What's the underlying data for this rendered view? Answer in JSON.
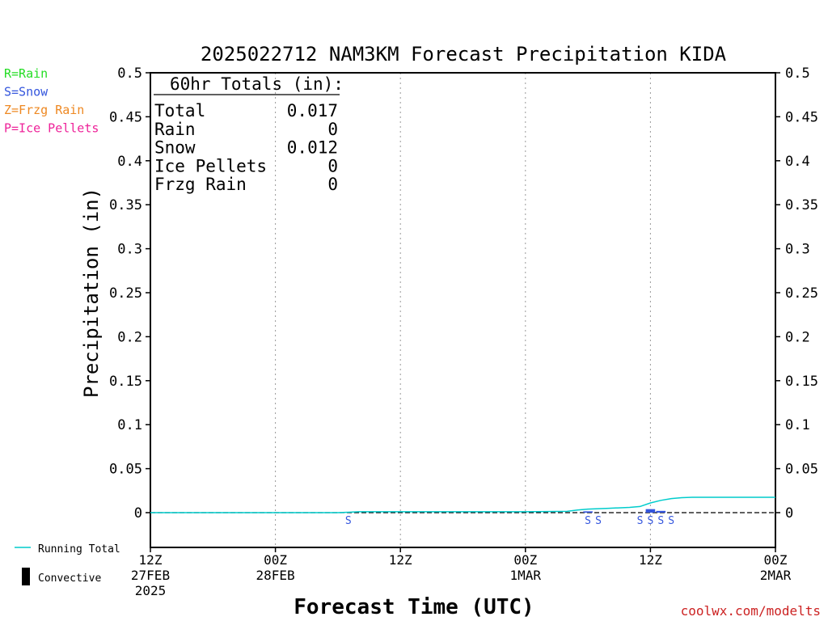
{
  "chart_data": {
    "type": "line",
    "title": "2025022712 NAM3KM Forecast Precipitation KIDA",
    "xlabel": "Forecast Time (UTC)",
    "ylabel": "Precipitation (in)",
    "ylim": [
      0,
      0.5
    ],
    "y_ticks": [
      "0",
      "0.05",
      "0.1",
      "0.15",
      "0.2",
      "0.25",
      "0.3",
      "0.35",
      "0.4",
      "0.45",
      "0.5"
    ],
    "x_range_hours": [
      0,
      60
    ],
    "x_ticks": [
      {
        "hour": 0,
        "lines": [
          "12Z",
          "27FEB",
          "2025"
        ]
      },
      {
        "hour": 12,
        "lines": [
          "00Z",
          "28FEB"
        ]
      },
      {
        "hour": 24,
        "lines": [
          "12Z"
        ]
      },
      {
        "hour": 36,
        "lines": [
          "00Z",
          "1MAR"
        ]
      },
      {
        "hour": 48,
        "lines": [
          "12Z"
        ]
      },
      {
        "hour": 60,
        "lines": [
          "00Z",
          "2MAR"
        ]
      }
    ],
    "grid_hours": [
      12,
      24,
      36,
      48
    ],
    "legend_left": [
      {
        "text": "R=Rain",
        "color": "#22dd22"
      },
      {
        "text": "S=Snow",
        "color": "#3355dd"
      },
      {
        "text": "Z=Frzg Rain",
        "color": "#ee8822"
      },
      {
        "text": "P=Ice Pellets",
        "color": "#ee2299"
      }
    ],
    "legend_bottom": [
      {
        "text": "Running Total",
        "color": "#00cccc",
        "kind": "line"
      },
      {
        "text": "Convective",
        "color": "#000000",
        "kind": "bar"
      }
    ],
    "totals_box": {
      "header": "60hr Totals (in):",
      "rows": [
        {
          "label": "Total",
          "value": "0.017"
        },
        {
          "label": "Rain",
          "value": "0"
        },
        {
          "label": "Snow",
          "value": "0.012"
        },
        {
          "label": "Ice Pellets",
          "value": "0"
        },
        {
          "label": "Frzg Rain",
          "value": "0"
        }
      ]
    },
    "series": [
      {
        "name": "Running Total",
        "color": "#00cccc",
        "x": [
          0,
          18,
          19,
          20,
          36,
          40,
          41,
          42,
          44,
          46,
          47,
          48,
          49,
          50,
          51,
          52,
          60
        ],
        "y": [
          0,
          0,
          0.0005,
          0.001,
          0.001,
          0.0015,
          0.003,
          0.004,
          0.005,
          0.006,
          0.007,
          0.011,
          0.014,
          0.016,
          0.017,
          0.0175,
          0.0175
        ]
      }
    ],
    "precip_bars": {
      "color": "#3355dd",
      "x": [
        42,
        48,
        49
      ],
      "y": [
        0.0015,
        0.004,
        0.002
      ]
    },
    "snow_markers": {
      "color": "#3355dd",
      "label": "S",
      "x": [
        19,
        42,
        43,
        47,
        48,
        49,
        50
      ]
    },
    "footer": "coolwx.com/modelts",
    "footer_color": "#cc2222"
  }
}
